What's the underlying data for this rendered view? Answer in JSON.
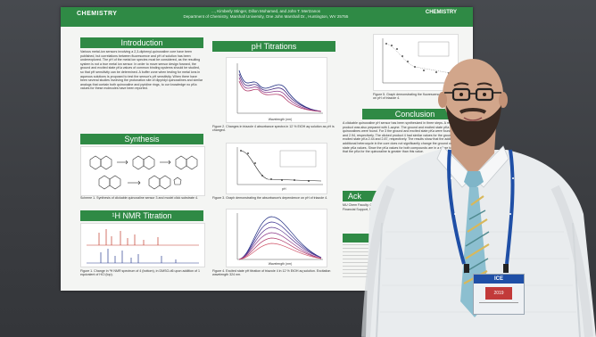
{
  "poster": {
    "header": {
      "logo_left": "CHEMISTRY",
      "authors_line1": "..., Kimberly Stinger, Dillon Mohamed, and John T. Mertzanos",
      "authors_line2": "Department of Chemistry, Marshall University, One John Marshall Dr., Huntington, WV 25755",
      "logo_right": "CHEMISTRY"
    },
    "sections": {
      "introduction": "Introduction",
      "synthesis": "Synthesis",
      "nmr": "¹H NMR Titration",
      "ph": "pH Titrations",
      "conclusion": "Conclusion",
      "ack": "Ack"
    },
    "intro_text": "Various metal-ion sensors involving a 2,3-diphenyl-quinoxaline core have been published, but correlations between fluorescence and pH of solution has been underexplored. The pH of the metal ion species must be considered, as the resulting system is not a true metal ion sensor. In order to move sensor design forward, the ground and excited state pKa values of common binding systems should be studied, so that pH sensitivity can be determined. A buffer zone when testing for metal ions in aqueous solutions is proposed to test the sensor's pH sensitivity. When there have been several studies involving the protonation site of dipyridyl quinoxalines and similar analogs that contain both quinoxaline and pyridine rings, to our knowledge no pKa values for these molecules have been reported.",
    "scheme_caption": "Scheme 1. Synthesis of clickable quinoxaline sensor 3 and model click substrate 4.",
    "nmr_caption": "Figure 1. Change in ¹H NMR spectrum of 4 (bottom), in DMSO-d6 upon addition of 1 equivalent of HCl (top).",
    "fig2_caption": "Figure 2. Changes in triazole 4 absorbance spectra in 12 % EtOH aq solution as pH is changed.",
    "fig3_caption": "Figure 3. Graph demonstrating the absorbance's dependence on pH of triazole 4.",
    "fig4_caption": "Figure 4. Excited state pH titration of triazole 4 in 12 % EtOH aq solution. Excitation wavelength 324 nm.",
    "fig5_caption": "Figure 5. Graph demonstrating the fluorescence dependence on pH of triazole 4.",
    "conclusion_text": "A clickable quinoxaline pH sensor has been synthesized in three steps. A model clicked product was also prepared with 1-azyne. The ground and excited state pKa for both quinoxalines were found. For 3 the ground and excited state pKa were found to be 2.84 and 2.94, respectively. The clicked product 4 had similar values for the ground and excited state pKa 2.44 and 2.87, respectively. The results show that the addition of an additional heterocycle in the core does not significantly change the ground or excited state pKa values. Since the pKa values for both compounds are in a range to suggest that the pKa for the quinoxaline is greater than this value.",
    "ack_text": "MU Chem Faculty, Quillinan, Dr. ..., Financial Support, Fresh Water Re...",
    "axis_absorbance": "Absorbance",
    "axis_wavelength": "Wavelength (nm)",
    "axis_ph": "pH",
    "axis_fluor": "Fluorescence Intensity"
  },
  "badge": {
    "title": "ICE",
    "subtitle": "2019"
  },
  "colors": {
    "poster_green": "#2f8a45",
    "lanyard_blue": "#1f4fa6",
    "shirt": "#e9ecee"
  }
}
